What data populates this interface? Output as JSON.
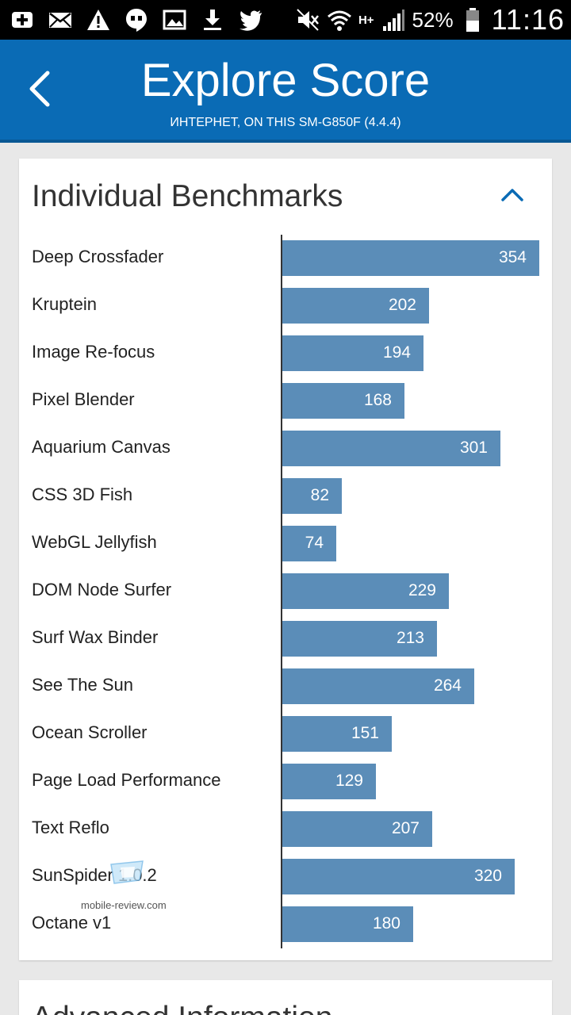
{
  "status_bar": {
    "left_icons": [
      "add-icon",
      "mail-icon",
      "warning-icon",
      "hangouts-icon",
      "image-icon",
      "download-icon",
      "twitter-icon"
    ],
    "network_type": "H+",
    "battery_percent": "52%",
    "time": "11:16"
  },
  "header": {
    "title": "Explore Score",
    "subtitle": "ИНТЕРНЕТ, ON THIS SM-G850F (4.4.4)",
    "accent_color": "#0a6bb5"
  },
  "benchmarks_card": {
    "title": "Individual Benchmarks",
    "bar_color": "#5b8db8"
  },
  "chart_data": {
    "type": "bar",
    "orientation": "horizontal",
    "categories": [
      "Deep Crossfader",
      "Kruptein",
      "Image Re-focus",
      "Pixel Blender",
      "Aquarium Canvas",
      "CSS 3D Fish",
      "WebGL Jellyfish",
      "DOM Node Surfer",
      "Surf Wax Binder",
      "See The Sun",
      "Ocean Scroller",
      "Page Load Performance",
      "Text Reflo",
      "SunSpider 1.0.2",
      "Octane v1"
    ],
    "values": [
      354,
      202,
      194,
      168,
      301,
      82,
      74,
      229,
      213,
      264,
      151,
      129,
      207,
      320,
      180
    ],
    "xlim": [
      0,
      354
    ],
    "grid": false
  },
  "watermark": {
    "text": "mobile-review.com"
  },
  "advanced_card": {
    "title": "Advanced Information"
  }
}
